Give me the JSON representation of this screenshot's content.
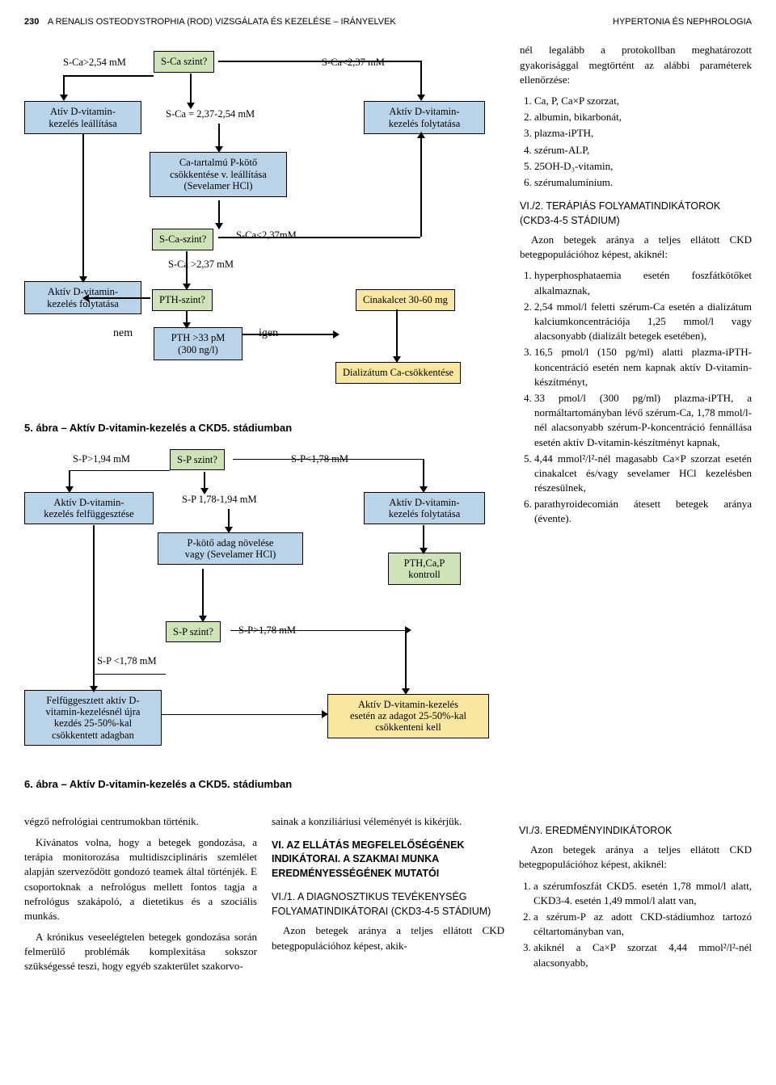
{
  "header": {
    "page_num": "230",
    "title_left": "A RENALIS OSTEODYSTROPHIA (ROD) VIZSGÁLATA ÉS KEZELÉSE – IRÁNYELVEK",
    "title_right": "HYPERTONIA ÉS NEPHROLOGIA"
  },
  "fig5": {
    "caption": "5. ábra – Aktív D-vitamin-kezelés a CKD5. stádiumban",
    "t_sca_high": "S-Ca>2,54 mM",
    "t_sca_low": "S-Ca<2,37 mM",
    "b_sca_szint1": "S-Ca szint?",
    "b_ativ_stop": "Atív D-vitamin-\nkezelés leállítása",
    "t_sca_mid": "S-Ca = 2,37-2,54 mM",
    "b_aktiv_folyt_r": "Aktív D-vitamin-\nkezelés folytatása",
    "b_ca_pkoto": "Ca-tartalmú P-kötő\ncsökkentése v. leállítása\n(Sevelamer HCl)",
    "b_sca_szint2": "S-Ca-szint?",
    "t_sca_lt237": "S-Ca<2,37mM",
    "t_sca_gt237": "S-Ca >2,37 mM",
    "b_aktiv_folyt_l": "Aktív D-vitamin-\nkezelés folytatása",
    "b_pth_szint": "PTH-szint?",
    "b_cinakalcet": "Cinakalcet 30-60 mg",
    "t_nem": "nem",
    "t_igen": "igen",
    "b_pth33": "PTH >33 pM\n(300 ng/l)",
    "b_dializatum": "Dializátum Ca-csökkentése"
  },
  "fig6": {
    "caption": "6. ábra – Aktív D-vitamin-kezelés a CKD5. stádiumban",
    "t_sp_high": "S-P>1,94 mM",
    "b_sp_szint1": "S-P szint?",
    "t_sp_low": "S-P<1,78 mM",
    "b_aktiv_felfügg": "Aktív D-vitamin-\nkezelés felfüggesztése",
    "t_sp_mid": "S-P 1,78-1,94 mM",
    "b_aktiv_folyt": "Aktív D-vitamin-\nkezelés folytatása",
    "b_pkoto_novel": "P-kötő adag növelése\nvagy (Sevelamer HCl)",
    "b_pthcap": "PTH,Ca,P\nkontroll",
    "b_sp_szint2": "S-P szint?",
    "t_sp_gt178": "S-P>1,78 mM",
    "t_sp_lt178": "S-P <1,78 mM",
    "b_felfügg_ujra": "Felfüggesztett aktív D-\nvitamin-kezelésnél újra\nkezdés 25-50%-kal\ncsökkentett adagban",
    "b_aktiv_csokk": "Aktív D-vitamin-kezelés\nesetén az adagot 25-50%-kal\ncsökkenteni kell"
  },
  "right": {
    "intro": "nél legalább a protokollban meghatározott gyakorisággal megtörtént az alábbi paraméterek ellenőrzése:",
    "list_params": [
      "Ca, P, Ca×P szorzat,",
      "albumin, bikarbonát,",
      "plazma-iPTH,",
      "szérum-ALP,",
      "25OH-D₃-vitamin,",
      "szérumalumínium."
    ],
    "h_vi2": "VI./2. TERÁPIÁS FOLYAMATINDIKÁTOROK (CKD3-4-5 STÁDIUM)",
    "p_vi2_intro": "Azon betegek aránya a teljes ellátott CKD betegpopulációhoz képest, akiknél:",
    "list_vi2": [
      "hyperphosphataemia esetén foszfátkötőket alkalmaznak,",
      "2,54 mmol/l feletti szérum-Ca esetén a dializátum kalciumkoncentrációja 1,25 mmol/l vagy alacsonyabb (dializált betegek esetében),",
      "16,5 pmol/l (150 pg/ml) alatti plazma-iPTH-koncentráció esetén nem kapnak aktív D-vitamin-készítményt,",
      "33 pmol/l (300 pg/ml) plazma-iPTH, a normáltartományban lévő szérum-Ca, 1,78 mmol/l-nél alacsonyabb szérum-P-koncentráció fennállása esetén aktív D-vitamin-készítményt kapnak,",
      "4,44 mmol²/l²-nél magasabb Ca×P szorzat esetén cinakalcet és/vagy sevelamer HCl kezelésben részesülnek,",
      "parathyroidecomián átesett betegek aránya (évente)."
    ]
  },
  "bottom": {
    "col1_p1": "végző nefrológiai centrumokban történik.",
    "col1_p2": "Kívánatos volna, hogy a betegek gondozása, a terápia monitorozása multidiszciplináris szemlélet alapján szerveződött gondozó teamek által történjék. E csoportoknak a nefrológus mellett fontos tagja a nefrológus szakápoló, a dietetikus és a szociális munkás.",
    "col1_p3": "A krónikus veseelégtelen betegek gondozása során felmerülő problémák komplexitása sokszor szükségessé teszi, hogy egyéb szakterület szakorvo-",
    "col2_p1": "sainak a konziliáriusi véleményét is kikérjük.",
    "col2_h1": "VI. AZ ELLÁTÁS MEGFELELŐSÉGÉNEK INDIKÁTORAI. A SZAKMAI MUNKA EREDMÉNYESSÉGÉNEK MUTATÓI",
    "col2_h2": "VI./1. A DIAGNOSZTIKUS TEVÉKENYSÉG FOLYAMATINDIKÁTORAI (CKD3-4-5 STÁDIUM)",
    "col2_p2": "Azon betegek aránya a teljes ellátott CKD betegpopulációhoz képest, akik-",
    "col3_h1": "VI./3. EREDMÉNYINDIKÁTOROK",
    "col3_p1": "Azon betegek aránya a teljes ellátott CKD betegpopulációhoz képest, akiknél:",
    "col3_list": [
      "a szérumfoszfát CKD5. esetén 1,78 mmol/l alatt, CKD3-4. esetén 1,49 mmol/l alatt van,",
      "a szérum-P az adott CKD-stádiumhoz tartozó céltartományban van,",
      "akiknél a Ca×P szorzat 4,44 mmol²/l²-nél alacsonyabb,"
    ]
  }
}
